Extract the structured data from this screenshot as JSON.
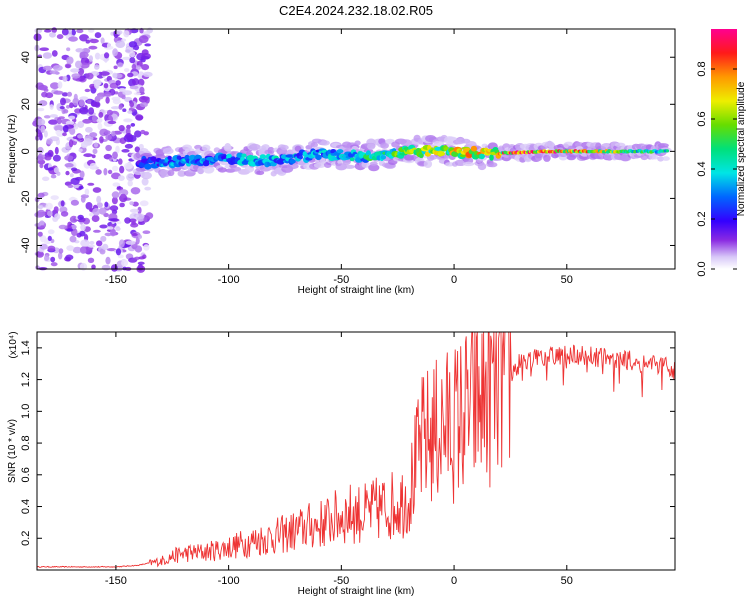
{
  "title": "C2E4.2024.232.18.02.R05",
  "chart_data": [
    {
      "type": "heatmap",
      "xlabel": "Height of straight line (km)",
      "ylabel": "Frequency (Hz)",
      "xlim": [
        -185,
        98
      ],
      "ylim": [
        -50,
        52
      ],
      "xticks": [
        -150,
        -100,
        -50,
        0,
        50
      ],
      "yticks": [
        -40,
        -20,
        0,
        20,
        40
      ],
      "colorbar": {
        "label": "Normalized spectral amplitude",
        "range": [
          0.0,
          0.96
        ],
        "ticks": [
          "0.0",
          "0.2",
          "0.4",
          "0.6",
          "0.8"
        ],
        "tick_values": [
          0.0,
          0.2,
          0.4,
          0.6,
          0.8
        ],
        "colormap": "rainbow (white-purple-blue-cyan-green-yellow-orange-red-magenta)"
      },
      "features": [
        {
          "name": "broadband noise",
          "x_range": [
            -185,
            -135
          ],
          "y_range": [
            -50,
            52
          ],
          "amplitude": [
            0.02,
            0.15
          ]
        },
        {
          "name": "signal trace",
          "points": [
            {
              "x": -140,
              "y": -5,
              "a": 0.25
            },
            {
              "x": -120,
              "y": -4,
              "a": 0.35
            },
            {
              "x": -100,
              "y": -3,
              "a": 0.35
            },
            {
              "x": -80,
              "y": -4,
              "a": 0.4
            },
            {
              "x": -60,
              "y": -1,
              "a": 0.35
            },
            {
              "x": -40,
              "y": -2,
              "a": 0.45
            },
            {
              "x": -20,
              "y": 0,
              "a": 0.6
            },
            {
              "x": 0,
              "y": 0,
              "a": 0.7
            },
            {
              "x": 15,
              "y": -1,
              "a": 0.75
            },
            {
              "x": 40,
              "y": 0,
              "a": 0.9
            },
            {
              "x": 60,
              "y": 0,
              "a": 0.75
            },
            {
              "x": 80,
              "y": 0,
              "a": 0.55
            },
            {
              "x": 95,
              "y": 0,
              "a": 0.45
            }
          ]
        }
      ]
    },
    {
      "type": "line",
      "xlabel": "Height of straight line (km)",
      "ylabel": "SNR (10 * v/v)",
      "y_multiplier": "(x10⁴)",
      "xlim": [
        -185,
        98
      ],
      "ylim": [
        0,
        1.5
      ],
      "xticks": [
        -150,
        -100,
        -50,
        0,
        50
      ],
      "yticks": [
        0.2,
        0.4,
        0.6,
        0.8,
        1.0,
        1.2,
        1.4
      ],
      "color": "#ee3333",
      "series": [
        {
          "x": [
            -185,
            -170,
            -150,
            -140,
            -130,
            -125,
            -120,
            -110,
            -100,
            -90,
            -80,
            -70,
            -65,
            -60,
            -55,
            -50,
            -45,
            -40,
            -35,
            -30,
            -25,
            -20,
            -17,
            -14,
            -10,
            -5,
            0,
            5,
            10,
            15,
            20,
            25,
            30,
            40,
            50,
            60,
            70,
            80,
            90,
            98
          ],
          "y": [
            0.02,
            0.02,
            0.02,
            0.03,
            0.06,
            0.09,
            0.11,
            0.12,
            0.15,
            0.19,
            0.22,
            0.26,
            0.29,
            0.3,
            0.33,
            0.36,
            0.38,
            0.37,
            0.4,
            0.42,
            0.44,
            0.5,
            0.7,
            0.85,
            0.9,
            0.95,
            0.98,
            1.05,
            1.1,
            1.18,
            1.25,
            1.3,
            1.38,
            1.4,
            1.42,
            1.41,
            1.4,
            1.38,
            1.35,
            1.33
          ]
        }
      ]
    }
  ]
}
